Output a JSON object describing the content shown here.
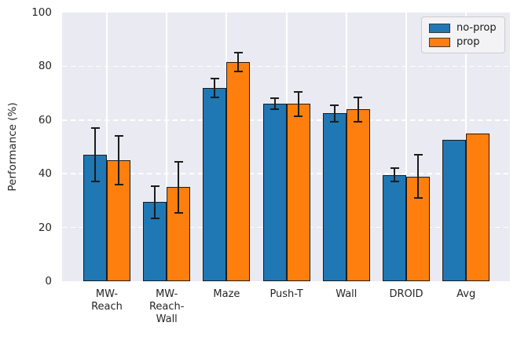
{
  "chart_data": {
    "type": "bar",
    "title": "",
    "xlabel": "",
    "ylabel": "Performance (%)",
    "ylim": [
      0,
      100
    ],
    "yticks": [
      0,
      20,
      40,
      60,
      80,
      100
    ],
    "grid": true,
    "legend_position": "upper right",
    "plot_background": "#eaeaf2",
    "grid_color": "#ffffff",
    "bar_edge_color": "#1c1c1c",
    "error_bar_color": "#1c1c1c",
    "categories": [
      "MW-Reach",
      "MW-Reach-Wall",
      "Maze",
      "Push-T",
      "Wall",
      "DROID",
      "Avg"
    ],
    "tick_labels": [
      "MW-\nReach",
      "MW-\nReach-\nWall",
      "Maze",
      "Push-T",
      "Wall",
      "DROID",
      "Avg"
    ],
    "series": [
      {
        "name": "no-prop",
        "color": "#1f77b4",
        "values": [
          47,
          29.5,
          72,
          66,
          62.5,
          39.5,
          52.5
        ],
        "errors": [
          10,
          6,
          3.5,
          2,
          3,
          2.5,
          0
        ]
      },
      {
        "name": "prop",
        "color": "#ff7f0e",
        "values": [
          45,
          35,
          81.5,
          66,
          64,
          39,
          55
        ],
        "errors": [
          9,
          9.5,
          3.5,
          4.5,
          4.5,
          8,
          0
        ]
      }
    ]
  }
}
